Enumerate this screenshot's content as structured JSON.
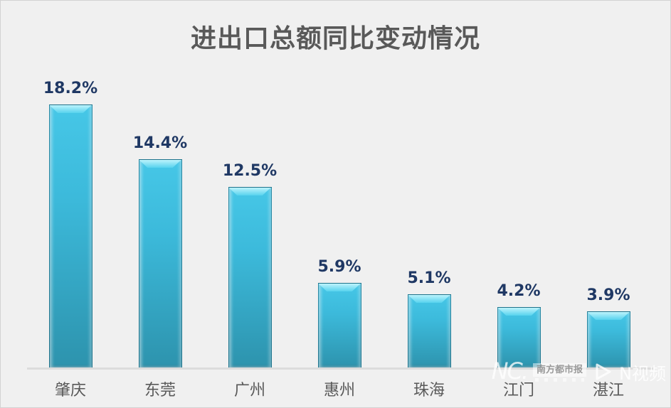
{
  "chart_data": {
    "type": "bar",
    "title": "进出口总额同比变动情况",
    "categories": [
      "肇庆",
      "东莞",
      "广州",
      "惠州",
      "珠海",
      "江门",
      "湛江"
    ],
    "values": [
      18.2,
      14.4,
      12.5,
      5.9,
      5.1,
      4.2,
      3.9
    ],
    "value_suffix": "%",
    "xlabel": "",
    "ylabel": "",
    "ylim": [
      0,
      20
    ],
    "grid": false,
    "legend": false,
    "bar_color_top": "#46C7E7",
    "bar_color_bottom": "#2D93AD",
    "bar_cap_color": "#8FE6F7",
    "value_label_color": "#1F3864",
    "category_label_color": "#595959",
    "title_color": "#595959",
    "background_color": "#F0F0F0",
    "baseline_color": "#DCDCDC"
  },
  "watermark": {
    "logo_text": "NC.",
    "brand_box_text": "南方都市报",
    "video_label": "N视频"
  }
}
